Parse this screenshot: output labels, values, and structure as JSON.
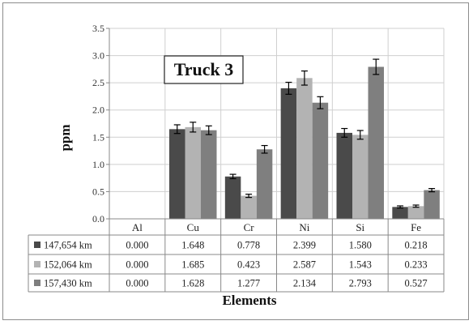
{
  "chart_data": {
    "type": "bar",
    "title": "Truck 3",
    "xlabel": "Elements",
    "ylabel": "ppm",
    "ylim": [
      0,
      3.5
    ],
    "yticks": [
      "0.0",
      "0.5",
      "1.0",
      "1.5",
      "2.0",
      "2.5",
      "3.0",
      "3.5"
    ],
    "categories": [
      "Al",
      "Cu",
      "Cr",
      "Ni",
      "Si",
      "Fe"
    ],
    "grid": true,
    "legend": "data-table-left",
    "series": [
      {
        "name": "147,654 km",
        "color": "#4a4a4a",
        "values": [
          0.0,
          1.648,
          0.778,
          2.399,
          1.58,
          0.218
        ],
        "labels": [
          "0.000",
          "1.648",
          "0.778",
          "2.399",
          "1.580",
          "0.218"
        ],
        "errors": [
          0,
          0.08,
          0.04,
          0.11,
          0.08,
          0.02
        ]
      },
      {
        "name": "152,064 km",
        "color": "#b3b3b3",
        "values": [
          0.0,
          1.685,
          0.423,
          2.587,
          1.543,
          0.233
        ],
        "labels": [
          "0.000",
          "1.685",
          "0.423",
          "2.587",
          "1.543",
          "0.233"
        ],
        "errors": [
          0,
          0.09,
          0.03,
          0.13,
          0.08,
          0.02
        ]
      },
      {
        "name": "157,430 km",
        "color": "#7f7f7f",
        "values": [
          0.0,
          1.628,
          1.277,
          2.134,
          2.793,
          0.527
        ],
        "labels": [
          "0.000",
          "1.628",
          "1.277",
          "2.134",
          "2.793",
          "0.527"
        ],
        "errors": [
          0,
          0.08,
          0.07,
          0.11,
          0.14,
          0.03
        ]
      }
    ]
  }
}
